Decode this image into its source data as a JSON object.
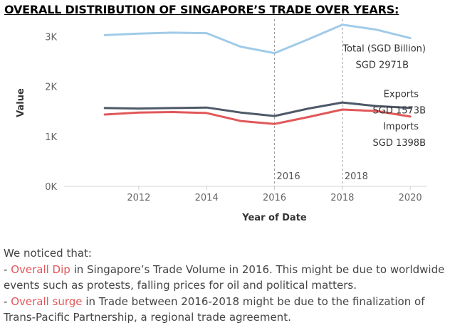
{
  "title": "OVERALL DISTRIBUTION OF SINGAPORE’S TRADE OVER YEARS:",
  "chart_data": {
    "type": "line",
    "x": [
      2011,
      2012,
      2013,
      2014,
      2015,
      2016,
      2017,
      2018,
      2019,
      2020
    ],
    "xlabel": "Year of Date",
    "ylabel": "Value",
    "xlim": [
      2009.8,
      2020.5
    ],
    "ylim": [
      0,
      3350
    ],
    "x_ticks": [
      "2012",
      "2014",
      "2016",
      "2018",
      "2020"
    ],
    "x_tick_values": [
      2012,
      2014,
      2016,
      2018,
      2020
    ],
    "y_ticks": [
      "0K",
      "1K",
      "2K",
      "3K"
    ],
    "y_tick_values": [
      0,
      1000,
      2000,
      3000
    ],
    "series": [
      {
        "key": "total",
        "color": "#a0cbe8",
        "values": [
          3030,
          3060,
          3080,
          3070,
          2800,
          2670,
          2950,
          3240,
          3140,
          2971
        ]
      },
      {
        "key": "exports",
        "color": "#4e5968",
        "values": [
          1570,
          1560,
          1570,
          1580,
          1480,
          1410,
          1560,
          1680,
          1610,
          1573
        ]
      },
      {
        "key": "imports",
        "color": "#e15759",
        "values": [
          1440,
          1480,
          1490,
          1470,
          1310,
          1250,
          1390,
          1540,
          1510,
          1398
        ]
      }
    ],
    "reference_lines": [
      {
        "x": 2016,
        "label": "2016"
      },
      {
        "x": 2018,
        "label": "2018"
      }
    ],
    "annotations": [
      {
        "series": "total",
        "line1": "Total (SGD Billion)",
        "line2": "SGD 2971B"
      },
      {
        "series": "exports",
        "line1": "Exports",
        "line2": "SGD 1573B"
      },
      {
        "series": "imports",
        "line1": "Imports",
        "line2": "SGD 1398B"
      }
    ],
    "grid": false
  },
  "notes": {
    "intro": "We noticed that:",
    "item1_prefix": "- ",
    "item1_highlight": "Overall Dip",
    "item1_text": " in Singapore’s Trade Volume in 2016. This might be due to worldwide events such as protests, falling prices for oil and political matters.",
    "item2_prefix": "- ",
    "item2_highlight": "Overall surge",
    "item2_text": " in Trade between 2016-2018 might be due to the finalization of Trans-Pacific Partnership, a regional trade agreement."
  }
}
